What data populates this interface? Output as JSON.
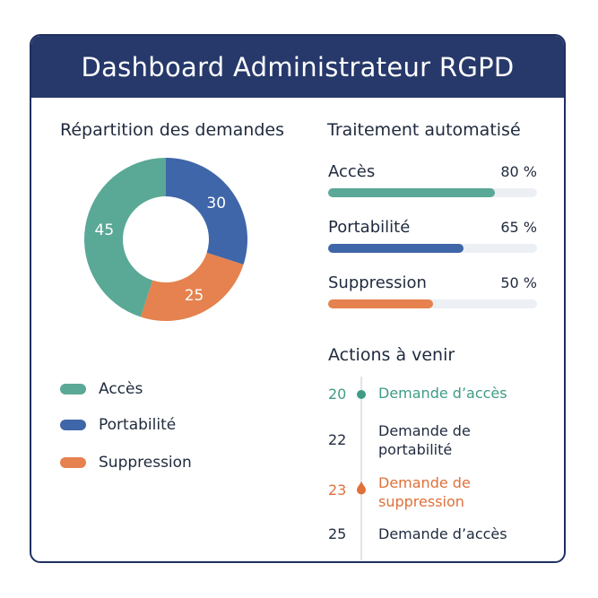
{
  "header": {
    "title": "Dashboard Administrateur RGPD"
  },
  "colors": {
    "acces": "#5aa896",
    "portabilite": "#3f66a8",
    "suppression": "#e5824f",
    "header_bg": "#27396b",
    "text_dark": "#1f2a3d",
    "track": "#eceff3"
  },
  "distribution": {
    "title": "Répartition des demandes",
    "chart_data": {
      "type": "pie",
      "title": "Répartition des demandes",
      "categories": [
        "Accès",
        "Portabilité",
        "Suppression"
      ],
      "values": [
        45,
        30,
        25
      ],
      "colors": [
        "#5aa896",
        "#3f66a8",
        "#e5824f"
      ]
    },
    "legend": [
      {
        "label": "Accès",
        "color": "#5aa896"
      },
      {
        "label": "Portabilité",
        "color": "#3f66a8"
      },
      {
        "label": "Suppression",
        "color": "#e5824f"
      }
    ]
  },
  "automation": {
    "title": "Traitement automatisé",
    "items": [
      {
        "label": "Accès",
        "percent": 80,
        "percent_text": "80 %",
        "color": "#5aa896"
      },
      {
        "label": "Portabilité",
        "percent": 65,
        "percent_text": "65 %",
        "color": "#3f66a8"
      },
      {
        "label": "Suppression",
        "percent": 50,
        "percent_text": "50 %",
        "color": "#e5824f"
      }
    ]
  },
  "actions": {
    "title": "Actions à venir",
    "items": [
      {
        "date": "20",
        "text": "Demande d’accès",
        "color": "#3f9b86",
        "marker": "dot"
      },
      {
        "date": "22",
        "text": "Demande de portabilité",
        "color": "#1f2a3d",
        "marker": "none"
      },
      {
        "date": "23",
        "text": "Demande de suppression",
        "color": "#e0703a",
        "marker": "drop"
      },
      {
        "date": "25",
        "text": "Demande d’accès",
        "color": "#1f2a3d",
        "marker": "none"
      }
    ]
  }
}
